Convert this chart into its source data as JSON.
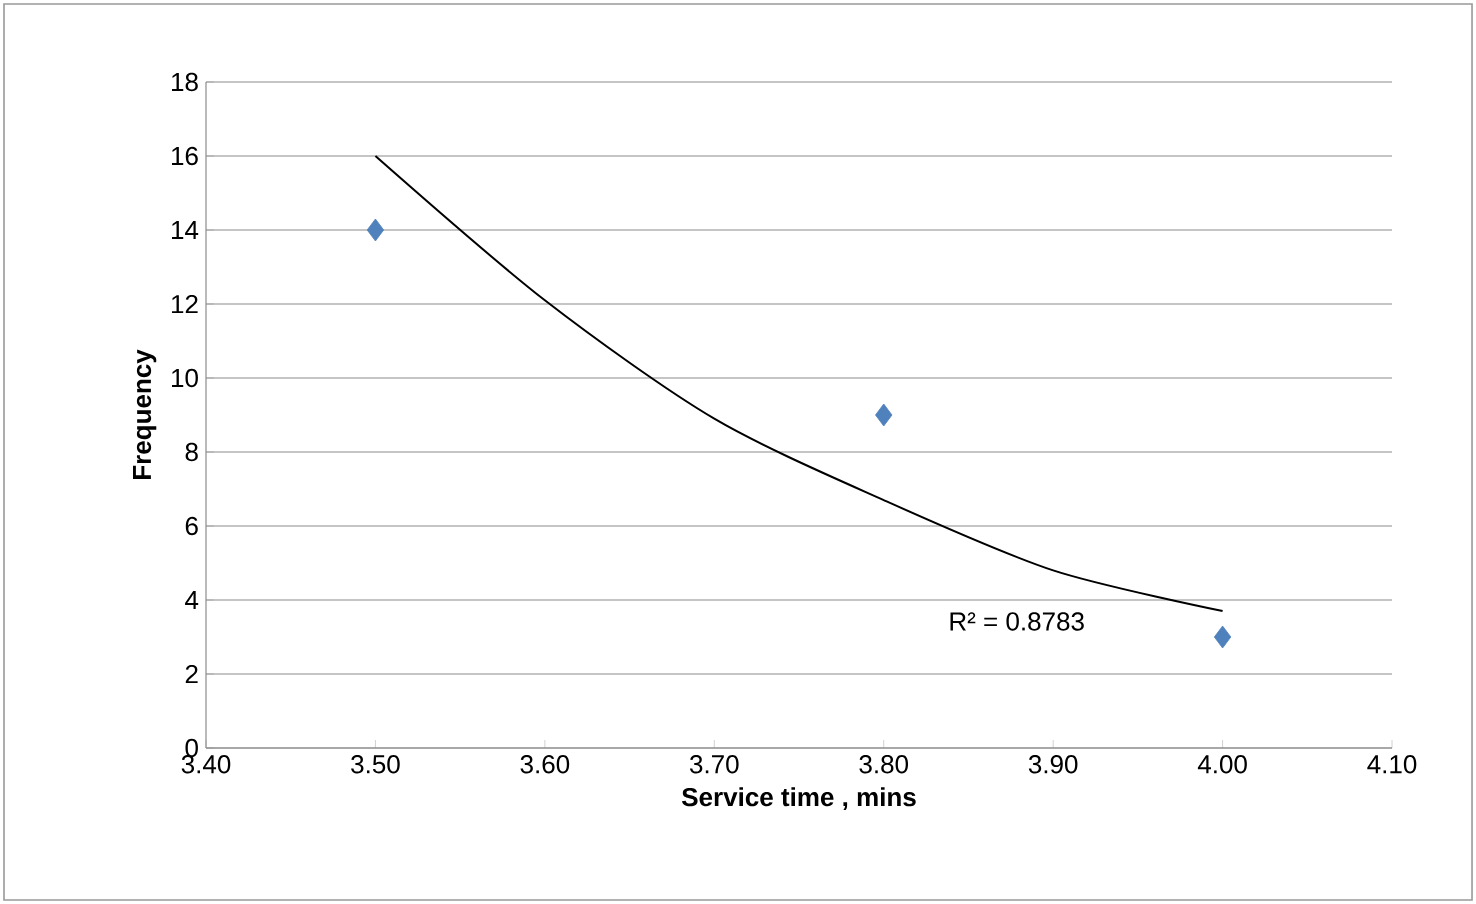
{
  "chart_data": {
    "type": "scatter",
    "xlabel": "Service time , mins",
    "ylabel": "Frequency",
    "series": [
      {
        "color": "#4f81bd",
        "marker": "diamond",
        "x": [
          3.5,
          3.8,
          4.0
        ],
        "values": [
          14,
          9,
          3
        ]
      },
      {
        "type": "line",
        "color": "#000000",
        "marker": "none",
        "x": [
          3.5,
          3.6,
          3.7,
          3.8,
          3.9,
          4.0
        ],
        "values": [
          16.0,
          12.1,
          8.9,
          6.7,
          4.8,
          3.7
        ]
      }
    ],
    "annotations": [
      "R² = 0.8783"
    ],
    "xlim": [
      3.4,
      4.1
    ],
    "xticks": [
      {
        "value": 3.4,
        "label": "3.40"
      },
      {
        "value": 3.5,
        "label": "3.50"
      },
      {
        "value": 3.6,
        "label": "3.60"
      },
      {
        "value": 3.7,
        "label": "3.70"
      },
      {
        "value": 3.8,
        "label": "3.80"
      },
      {
        "value": 3.9,
        "label": "3.90"
      },
      {
        "value": 4.0,
        "label": "4.00"
      },
      {
        "value": 4.1,
        "label": "4.10"
      }
    ],
    "ylim": [
      0,
      18
    ],
    "yticks": [
      0,
      2,
      4,
      6,
      8,
      10,
      12,
      14,
      16,
      18
    ],
    "grid": "y"
  }
}
